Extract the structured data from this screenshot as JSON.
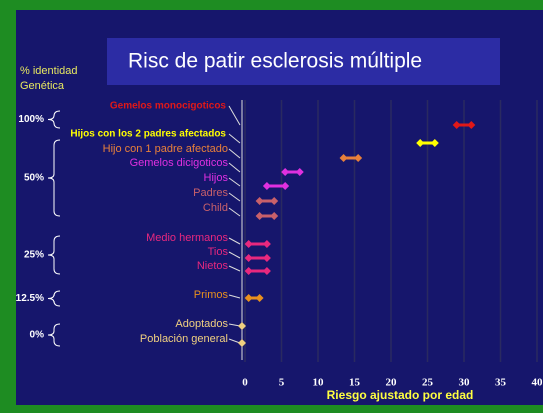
{
  "chart_data": {
    "type": "range",
    "title": "Risc de patir esclerosis múltiple",
    "y_axis_label": "% identidad Genética",
    "x_axis_label": "Riesgo ajustado por edad",
    "categories": [
      "Gemelos monocigoticos",
      "Hijos con los 2 padres afectados",
      "Hijo con 1 padre afectado",
      "Gemelos dicigoticos",
      "Hijos",
      "Padres",
      "Child",
      "Medio hermanos",
      "Tios",
      "Nietos",
      "Primos",
      "Adoptados",
      "Población general"
    ],
    "low": [
      29,
      24,
      13.5,
      5.5,
      3,
      2,
      2,
      0.5,
      0.5,
      0.5,
      0.5,
      0,
      0
    ],
    "high": [
      31,
      26,
      15.5,
      7.5,
      5.5,
      4,
      4,
      3,
      3,
      3,
      2,
      null,
      null
    ],
    "colors": [
      "#e01818",
      "#ffff00",
      "#e8803a",
      "#e030e0",
      "#e030e0",
      "#c8606a",
      "#c8606a",
      "#e8287e",
      "#e8287e",
      "#e8287e",
      "#e8901e",
      "#f0d080",
      "#f0d080"
    ],
    "groups": [
      "100%",
      "50%",
      "25%",
      "12.5%",
      "0%"
    ],
    "xlim": [
      0,
      40
    ],
    "xticks": [
      0,
      5,
      10,
      15,
      20,
      25,
      30,
      35,
      40
    ],
    "grid": true
  }
}
